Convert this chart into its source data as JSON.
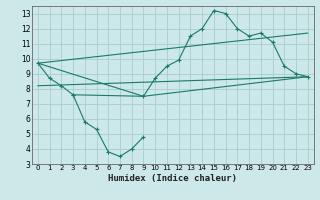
{
  "title": "",
  "xlabel": "Humidex (Indice chaleur)",
  "background_color": "#cce8e8",
  "grid_color": "#aacccc",
  "line_color": "#1a7a6a",
  "xlim": [
    -0.5,
    23.5
  ],
  "ylim": [
    3,
    13.5
  ],
  "xticks": [
    0,
    1,
    2,
    3,
    4,
    5,
    6,
    7,
    8,
    9,
    10,
    11,
    12,
    13,
    14,
    15,
    16,
    17,
    18,
    19,
    20,
    21,
    22,
    23
  ],
  "yticks": [
    3,
    4,
    5,
    6,
    7,
    8,
    9,
    10,
    11,
    12,
    13
  ],
  "series_main_x": [
    0,
    1,
    2,
    3,
    9,
    10,
    11,
    12,
    13,
    14,
    15,
    16,
    17,
    18,
    19,
    20,
    21,
    22,
    23
  ],
  "series_main_y": [
    9.7,
    8.7,
    8.2,
    7.6,
    7.5,
    8.7,
    9.5,
    9.9,
    11.5,
    12.0,
    13.2,
    13.0,
    12.0,
    11.5,
    11.7,
    11.1,
    9.5,
    9.0,
    8.8
  ],
  "series_dip_x": [
    3,
    4,
    5,
    6,
    7,
    8,
    9
  ],
  "series_dip_y": [
    7.6,
    5.8,
    5.3,
    3.8,
    3.5,
    4.0,
    4.8
  ],
  "envelope_line1_x": [
    0,
    23
  ],
  "envelope_line1_y": [
    9.7,
    11.7
  ],
  "envelope_line2_x": [
    0,
    23
  ],
  "envelope_line2_y": [
    8.2,
    8.8
  ],
  "envelope_line3_x": [
    0,
    9,
    23
  ],
  "envelope_line3_y": [
    9.7,
    7.5,
    8.8
  ]
}
